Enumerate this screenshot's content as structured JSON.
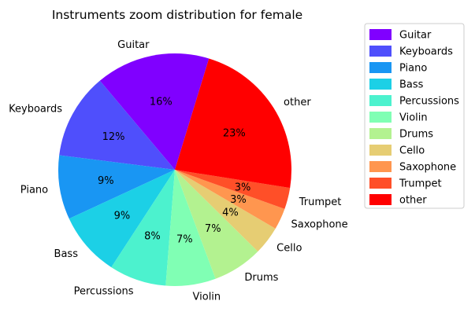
{
  "chart_data": {
    "type": "pie",
    "title": "Instruments zoom distribution for female",
    "categories": [
      "Guitar",
      "Keyboards",
      "Piano",
      "Bass",
      "Percussions",
      "Violin",
      "Drums",
      "Cello",
      "Saxophone",
      "Trumpet",
      "other"
    ],
    "values": [
      16,
      12,
      9,
      9,
      8,
      7,
      7,
      4,
      3,
      3,
      23
    ],
    "value_labels": [
      "16%",
      "12%",
      "9%",
      "9%",
      "8%",
      "7%",
      "7%",
      "4%",
      "3%",
      "3%",
      "23%"
    ],
    "colors": [
      "#8000ff",
      "#4f4ffc",
      "#1996f3",
      "#1cd0e6",
      "#4cf2ce",
      "#80ffb4",
      "#b3f290",
      "#e6cd73",
      "#ff964f",
      "#ff4f28",
      "#ff0000"
    ],
    "start_angle_deg": 73,
    "direction": "counterclockwise",
    "legend": {
      "position": "right",
      "entries": [
        "Guitar",
        "Keyboards",
        "Piano",
        "Bass",
        "Percussions",
        "Violin",
        "Drums",
        "Cello",
        "Saxophone",
        "Trumpet",
        "other"
      ]
    }
  }
}
